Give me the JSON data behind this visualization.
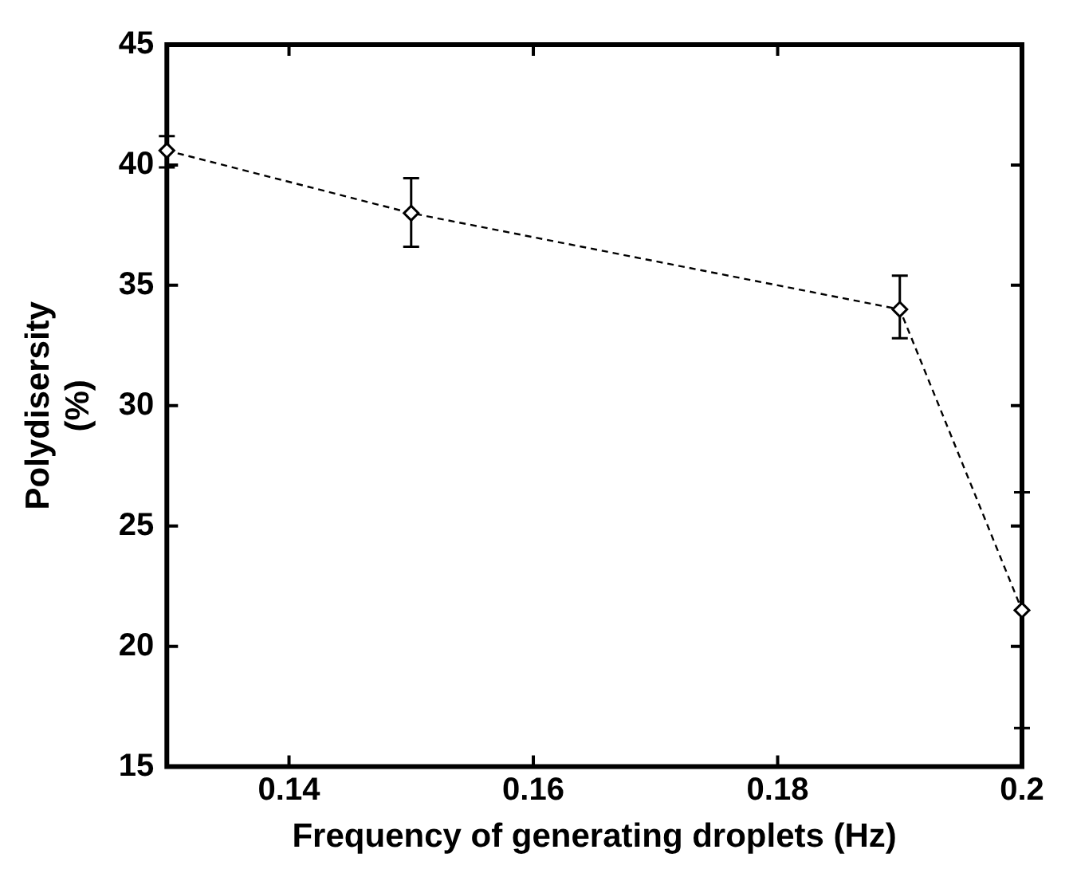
{
  "chart_data": {
    "type": "line",
    "xlabel": "Frequency of generating droplets (Hz)",
    "ylabel": "Polydisersity\n(%)",
    "x": [
      0.13,
      0.15,
      0.19,
      0.2
    ],
    "series": [
      {
        "color": "#000000",
        "values": [
          40.6,
          38,
          34,
          21.5
        ],
        "errors": [
          [
            39.9,
            41.2
          ],
          [
            36.6,
            39.45
          ],
          [
            32.8,
            35.4
          ],
          [
            16.6,
            26.4
          ]
        ]
      }
    ],
    "xlim": [
      0.13,
      0.2
    ],
    "xticks": [
      0.14,
      0.16,
      0.18,
      {
        "value": 0.2,
        "label": "0.2"
      }
    ],
    "ylim": [
      15,
      45
    ],
    "yticks": [
      15,
      20,
      25,
      30,
      35,
      40,
      45
    ],
    "grid": false,
    "legend": false,
    "marker": "diamond",
    "line_style": "dashed"
  }
}
